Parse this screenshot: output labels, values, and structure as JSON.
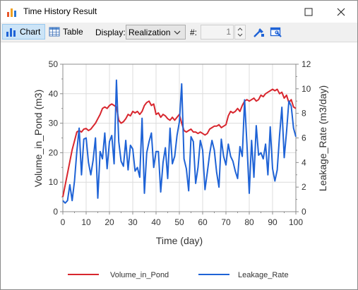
{
  "window": {
    "title": "Time History Result"
  },
  "toolbar": {
    "chart_label": "Chart",
    "table_label": "Table",
    "display_label": "Display:",
    "display_value": "Realization",
    "realization_label": "#:",
    "realization_value": "1"
  },
  "colors": {
    "volume": "#d8262e",
    "leakage": "#1f63d6",
    "grid": "#dcdcdc"
  },
  "chart_data": {
    "type": "line",
    "xlabel": "Time (day)",
    "ylabel_left": "Volume_in_Pond (m3)",
    "ylabel_right": "Leakage_Rate (m3/day)",
    "xlim": [
      0,
      100
    ],
    "ylim_left": [
      0,
      50
    ],
    "ylim_right": [
      0,
      12
    ],
    "x_ticks": [
      "0",
      "10",
      "20",
      "30",
      "40",
      "50",
      "60",
      "70",
      "80",
      "90",
      "100"
    ],
    "y_ticks_left": [
      "0",
      "10",
      "20",
      "30",
      "40",
      "50"
    ],
    "y_ticks_right": [
      "0",
      "2",
      "4",
      "6",
      "8",
      "10",
      "12"
    ],
    "grid": true,
    "legend_position": "bottom",
    "series": [
      {
        "name": "Volume_in_Pond",
        "axis": "left",
        "x": [
          0,
          1,
          2,
          3,
          4,
          5,
          6,
          7,
          8,
          9,
          10,
          11,
          12,
          13,
          14,
          15,
          16,
          17,
          18,
          19,
          20,
          21,
          22,
          23,
          24,
          25,
          26,
          27,
          28,
          29,
          30,
          31,
          32,
          33,
          34,
          35,
          36,
          37,
          38,
          39,
          40,
          41,
          42,
          43,
          44,
          45,
          46,
          47,
          48,
          49,
          50,
          51,
          52,
          53,
          54,
          55,
          56,
          57,
          58,
          59,
          60,
          61,
          62,
          63,
          64,
          65,
          66,
          67,
          68,
          69,
          70,
          71,
          72,
          73,
          74,
          75,
          76,
          77,
          78,
          79,
          80,
          81,
          82,
          83,
          84,
          85,
          86,
          87,
          88,
          89,
          90,
          91,
          92,
          93,
          94,
          95,
          96,
          97,
          98,
          99,
          100
        ],
        "y": [
          5,
          9,
          13,
          17,
          21,
          24,
          27,
          27.5,
          27,
          28,
          28.2,
          27.5,
          28,
          29,
          30,
          31.5,
          33,
          35,
          35.5,
          35,
          36,
          36.5,
          36,
          35.5,
          31,
          30,
          30.5,
          31.5,
          33,
          32.5,
          34,
          33.5,
          34,
          33,
          34,
          36,
          37,
          37.5,
          36,
          36.5,
          33,
          33.5,
          32,
          33,
          32.5,
          31.5,
          31,
          32,
          31,
          32,
          33,
          30,
          27.5,
          27,
          27.5,
          28,
          27,
          27,
          26.5,
          27,
          26.5,
          26,
          26.5,
          28,
          28.5,
          29,
          29,
          29.5,
          28.5,
          29,
          29.5,
          32.5,
          34,
          33.5,
          34,
          35,
          34,
          36,
          37.5,
          38,
          37.5,
          38,
          38.5,
          37.5,
          38,
          39.5,
          39,
          40,
          40.5,
          41,
          41.5,
          41,
          41.5,
          40,
          40.5,
          38.5,
          39.5,
          37,
          38,
          35.5,
          35
        ]
      },
      {
        "name": "Leakage_Rate",
        "axis": "right",
        "x": [
          0,
          1,
          2,
          3,
          4,
          5,
          6,
          7,
          8,
          9,
          10,
          11,
          12,
          13,
          14,
          15,
          16,
          17,
          18,
          19,
          20,
          21,
          22,
          23,
          24,
          25,
          26,
          27,
          28,
          29,
          30,
          31,
          32,
          33,
          34,
          35,
          36,
          37,
          38,
          39,
          40,
          41,
          42,
          43,
          44,
          45,
          46,
          47,
          48,
          49,
          50,
          51,
          52,
          53,
          54,
          55,
          56,
          57,
          58,
          59,
          60,
          61,
          62,
          63,
          64,
          65,
          66,
          67,
          68,
          69,
          70,
          71,
          72,
          73,
          74,
          75,
          76,
          77,
          78,
          79,
          80,
          81,
          82,
          83,
          84,
          85,
          86,
          87,
          88,
          89,
          90,
          91,
          92,
          93,
          94,
          95,
          96,
          97,
          98,
          99,
          100
        ],
        "y": [
          0.9,
          0.7,
          0.9,
          2.2,
          0.9,
          2.5,
          4.9,
          6.8,
          3.0,
          5.9,
          6.0,
          4.0,
          3.0,
          4.2,
          6.0,
          1.1,
          4.9,
          4.3,
          6.4,
          3.5,
          5.7,
          6.2,
          3.9,
          10.7,
          5.7,
          4.1,
          3.7,
          5.8,
          3.4,
          5.4,
          5.1,
          3.3,
          3.6,
          2.8,
          7.6,
          1.5,
          4.8,
          5.7,
          6.4,
          3.6,
          4.9,
          4.9,
          1.6,
          4.0,
          5.2,
          2.7,
          6.8,
          3.9,
          4.5,
          6.2,
          7.3,
          10.4,
          4.3,
          3.5,
          1.7,
          6.1,
          5.7,
          2.3,
          3.6,
          5.8,
          5.0,
          1.8,
          3.2,
          4.7,
          5.8,
          5.0,
          3.2,
          2.0,
          5.9,
          4.5,
          3.8,
          5.5,
          4.5,
          4.1,
          3.3,
          2.7,
          5.3,
          4.5,
          9.1,
          5.5,
          1.5,
          5.8,
          2.8,
          7.0,
          4.6,
          4.8,
          4.3,
          5.5,
          3.0,
          6.9,
          3.5,
          2.5,
          3.4,
          6.2,
          8.5,
          4.4,
          6.5,
          9.0,
          8.6,
          6.8,
          6.1
        ]
      }
    ]
  }
}
